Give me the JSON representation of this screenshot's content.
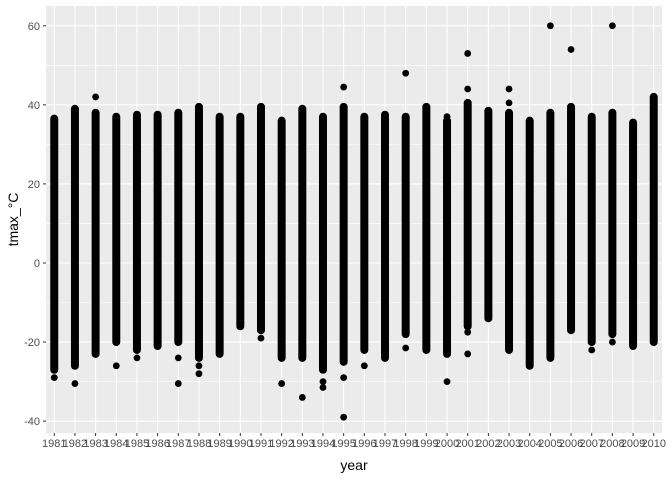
{
  "chart_data": {
    "type": "scatter",
    "xlabel": "year",
    "ylabel": "tmax_°C",
    "ylim": [
      -43,
      65
    ],
    "yticks": [
      -40,
      -20,
      0,
      20,
      40,
      60
    ],
    "xticks": [
      1981,
      1982,
      1983,
      1984,
      1985,
      1986,
      1987,
      1988,
      1989,
      1990,
      1991,
      1992,
      1993,
      1994,
      1995,
      1996,
      1997,
      1998,
      1999,
      2000,
      2001,
      2002,
      2003,
      2004,
      2005,
      2006,
      2007,
      2008,
      2009,
      2010
    ],
    "grid": true,
    "background": "#ebebeb",
    "grid_color": "#ffffff",
    "point_color": "#000000",
    "ranges": [
      {
        "year": 1981,
        "min": -27,
        "max": 36.5
      },
      {
        "year": 1982,
        "min": -26,
        "max": 39
      },
      {
        "year": 1983,
        "min": -23,
        "max": 38
      },
      {
        "year": 1984,
        "min": -20,
        "max": 37
      },
      {
        "year": 1985,
        "min": -22,
        "max": 37.5
      },
      {
        "year": 1986,
        "min": -21,
        "max": 37.5
      },
      {
        "year": 1987,
        "min": -20,
        "max": 38
      },
      {
        "year": 1988,
        "min": -24,
        "max": 39.5
      },
      {
        "year": 1989,
        "min": -23,
        "max": 37
      },
      {
        "year": 1990,
        "min": -16,
        "max": 37
      },
      {
        "year": 1991,
        "min": -17,
        "max": 39.5
      },
      {
        "year": 1992,
        "min": -24,
        "max": 36
      },
      {
        "year": 1993,
        "min": -24,
        "max": 39
      },
      {
        "year": 1994,
        "min": -27,
        "max": 37
      },
      {
        "year": 1995,
        "min": -25,
        "max": 39.5
      },
      {
        "year": 1996,
        "min": -22,
        "max": 37
      },
      {
        "year": 1997,
        "min": -24,
        "max": 37.5
      },
      {
        "year": 1998,
        "min": -18,
        "max": 37
      },
      {
        "year": 1999,
        "min": -22,
        "max": 39.5
      },
      {
        "year": 2000,
        "min": -23,
        "max": 36
      },
      {
        "year": 2001,
        "min": -16,
        "max": 40.5
      },
      {
        "year": 2002,
        "min": -14,
        "max": 38.5
      },
      {
        "year": 2003,
        "min": -22,
        "max": 38
      },
      {
        "year": 2004,
        "min": -26,
        "max": 36
      },
      {
        "year": 2005,
        "min": -24,
        "max": 38
      },
      {
        "year": 2006,
        "min": -17,
        "max": 39.5
      },
      {
        "year": 2007,
        "min": -20,
        "max": 37
      },
      {
        "year": 2008,
        "min": -18,
        "max": 38
      },
      {
        "year": 2009,
        "min": -21,
        "max": 35.5
      },
      {
        "year": 2010,
        "min": -20,
        "max": 42
      }
    ],
    "outliers": [
      {
        "year": 1981,
        "value": -29
      },
      {
        "year": 1982,
        "value": -30.5
      },
      {
        "year": 1983,
        "value": 42
      },
      {
        "year": 1984,
        "value": -26
      },
      {
        "year": 1985,
        "value": -24
      },
      {
        "year": 1987,
        "value": -30.5
      },
      {
        "year": 1987,
        "value": -24
      },
      {
        "year": 1988,
        "value": -26
      },
      {
        "year": 1988,
        "value": -28
      },
      {
        "year": 1991,
        "value": -19
      },
      {
        "year": 1992,
        "value": -30.5
      },
      {
        "year": 1993,
        "value": -34
      },
      {
        "year": 1994,
        "value": -30
      },
      {
        "year": 1994,
        "value": -31.5
      },
      {
        "year": 1995,
        "value": -29
      },
      {
        "year": 1995,
        "value": -39
      },
      {
        "year": 1995,
        "value": 44.5
      },
      {
        "year": 1996,
        "value": -26
      },
      {
        "year": 1998,
        "value": 48
      },
      {
        "year": 1998,
        "value": -21.5
      },
      {
        "year": 2000,
        "value": -30
      },
      {
        "year": 2000,
        "value": 37
      },
      {
        "year": 2001,
        "value": 53
      },
      {
        "year": 2001,
        "value": 44
      },
      {
        "year": 2001,
        "value": -17.5
      },
      {
        "year": 2001,
        "value": -23
      },
      {
        "year": 2003,
        "value": 44
      },
      {
        "year": 2003,
        "value": 40.5
      },
      {
        "year": 2005,
        "value": 60
      },
      {
        "year": 2006,
        "value": 54
      },
      {
        "year": 2007,
        "value": -22
      },
      {
        "year": 2008,
        "value": 60
      },
      {
        "year": 2008,
        "value": -20
      }
    ]
  }
}
